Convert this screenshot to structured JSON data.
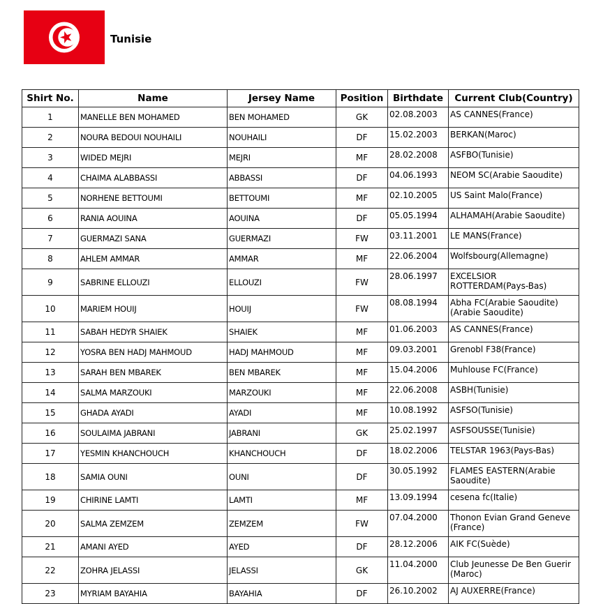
{
  "header": {
    "country": "Tunisie",
    "flag_colors": {
      "red": "#e70013",
      "white": "#ffffff"
    }
  },
  "table": {
    "columns": [
      "Shirt No.",
      "Name",
      "Jersey Name",
      "Position",
      "Birthdate",
      "Current Club(Country)"
    ],
    "rows": [
      [
        "1",
        "MANELLE BEN MOHAMED",
        "BEN MOHAMED",
        "GK",
        "02.08.2003",
        "AS CANNES(France)"
      ],
      [
        "2",
        "NOURA BEDOUI NOUHAILI",
        "NOUHAILI",
        "DF",
        "15.02.2003",
        "BERKAN(Maroc)"
      ],
      [
        "3",
        "WIDED MEJRI",
        "MEJRI",
        "MF",
        "28.02.2008",
        "ASFBO(Tunisie)"
      ],
      [
        "4",
        "CHAIMA ALABBASSI",
        "ABBASSI",
        "DF",
        "04.06.1993",
        "NEOM SC(Arabie Saoudite)"
      ],
      [
        "5",
        "NORHENE BETTOUMI",
        "BETTOUMI",
        "MF",
        "02.10.2005",
        "US Saint Malo(France)"
      ],
      [
        "6",
        "RANIA AOUINA",
        "AOUINA",
        "DF",
        "05.05.1994",
        "ALHAMAH(Arabie Saoudite)"
      ],
      [
        "7",
        "GUERMAZI SANA",
        "GUERMAZI",
        "FW",
        "03.11.2001",
        "LE MANS(France)"
      ],
      [
        "8",
        "AHLEM AMMAR",
        "AMMAR",
        "MF",
        "22.06.2004",
        "Wolfsbourg(Allemagne)"
      ],
      [
        "9",
        "SABRINE ELLOUZI",
        "ELLOUZI",
        "FW",
        "28.06.1997",
        "EXCELSIOR ROTTERDAM(Pays-Bas)"
      ],
      [
        "10",
        "MARIEM HOUIJ",
        "HOUIJ",
        "FW",
        "08.08.1994",
        "Abha FC(Arabie Saoudite)(Arabie Saoudite)"
      ],
      [
        "11",
        "SABAH HEDYR SHAIEK",
        "SHAIEK",
        "MF",
        "01.06.2003",
        "AS CANNES(France)"
      ],
      [
        "12",
        "YOSRA BEN HADJ MAHMOUD",
        "HADJ MAHMOUD",
        "MF",
        "09.03.2001",
        "Grenobl F38(France)"
      ],
      [
        "13",
        "SARAH BEN MBAREK",
        "BEN MBAREK",
        "MF",
        "15.04.2006",
        "Muhlouse FC(France)"
      ],
      [
        "14",
        "SALMA MARZOUKI",
        "MARZOUKI",
        "MF",
        "22.06.2008",
        "ASBH(Tunisie)"
      ],
      [
        "15",
        "GHADA AYADI",
        "AYADI",
        "MF",
        "10.08.1992",
        "ASFSO(Tunisie)"
      ],
      [
        "16",
        "SOULAIMA JABRANI",
        "JABRANI",
        "GK",
        "25.02.1997",
        "ASFSOUSSE(Tunisie)"
      ],
      [
        "17",
        "YESMIN KHANCHOUCH",
        "KHANCHOUCH",
        "DF",
        "18.02.2006",
        "TELSTAR 1963(Pays-Bas)"
      ],
      [
        "18",
        "SAMIA OUNI",
        "OUNI",
        "DF",
        "30.05.1992",
        "FLAMES EASTERN(Arabie Saoudite)"
      ],
      [
        "19",
        "CHIRINE LAMTI",
        "LAMTI",
        "MF",
        "13.09.1994",
        "cesena fc(Italie)"
      ],
      [
        "20",
        "SALMA ZEMZEM",
        "ZEMZEM",
        "FW",
        "07.04.2000",
        "Thonon Evian Grand Geneve (France)"
      ],
      [
        "21",
        "AMANI AYED",
        "AYED",
        "DF",
        "28.12.2006",
        "AIK FC(Suède)"
      ],
      [
        "22",
        "ZOHRA JELASSI",
        "JELASSI",
        "GK",
        "11.04.2000",
        "Club Jeunesse De Ben Guerir (Maroc)"
      ],
      [
        "23",
        "MYRIAM BAYAHIA",
        "BAYAHIA",
        "DF",
        "26.10.2002",
        "AJ AUXERRE(France)"
      ]
    ]
  }
}
